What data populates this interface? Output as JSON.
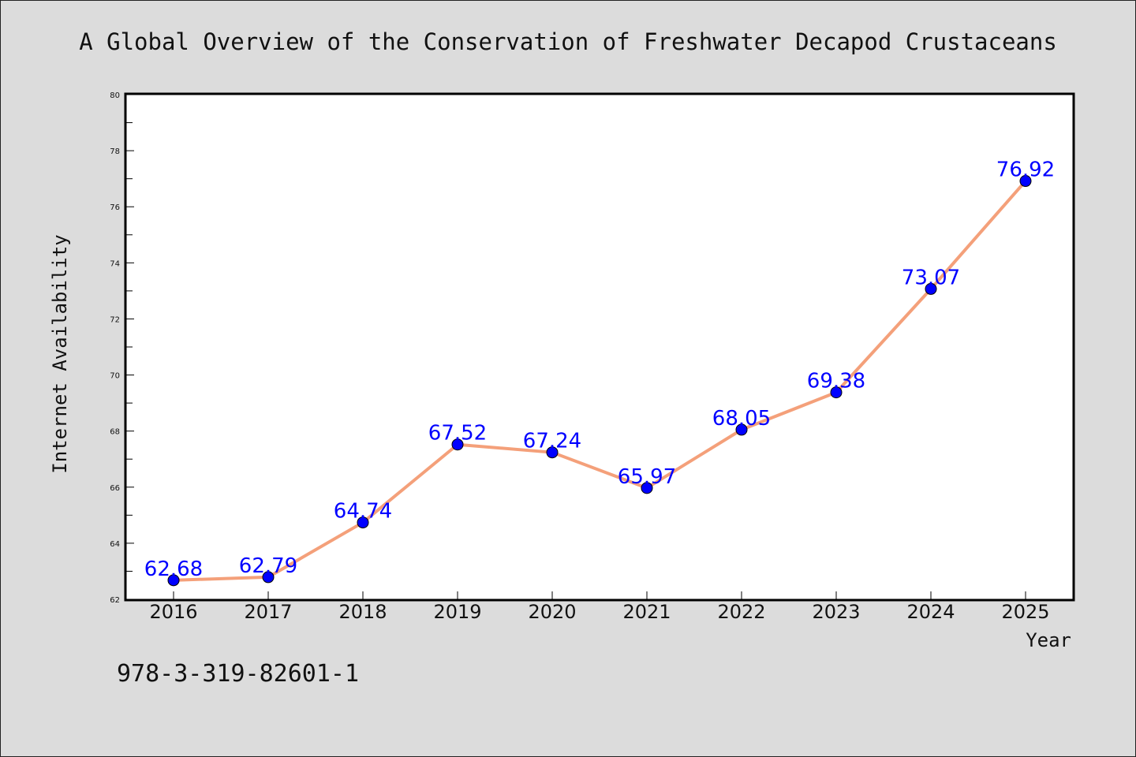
{
  "chart_data": {
    "type": "line",
    "title": "A Global Overview of the Conservation of Freshwater Decapod Crustaceans",
    "xlabel": "Year",
    "ylabel": "Internet Availability",
    "categories": [
      "2016",
      "2017",
      "2018",
      "2019",
      "2020",
      "2021",
      "2022",
      "2023",
      "2024",
      "2025"
    ],
    "series": [
      {
        "values": [
          62.68,
          62.79,
          64.74,
          67.52,
          67.24,
          65.97,
          68.05,
          69.38,
          73.07,
          76.92
        ],
        "labels": [
          "62.68",
          "62.79",
          "64.74",
          "67.52",
          "67.24",
          "65.97",
          "68.05",
          "69.38",
          "73.07",
          "76.92"
        ],
        "line_color": "#f4a07a",
        "marker_color": "#0000ff"
      }
    ],
    "ylim": [
      62,
      80
    ],
    "yticks": [
      "62",
      "64",
      "66",
      "68",
      "70",
      "72",
      "74",
      "76",
      "78",
      "80"
    ],
    "grid": false,
    "legend": "none"
  },
  "footer": {
    "isbn": "978-3-319-82601-1"
  }
}
